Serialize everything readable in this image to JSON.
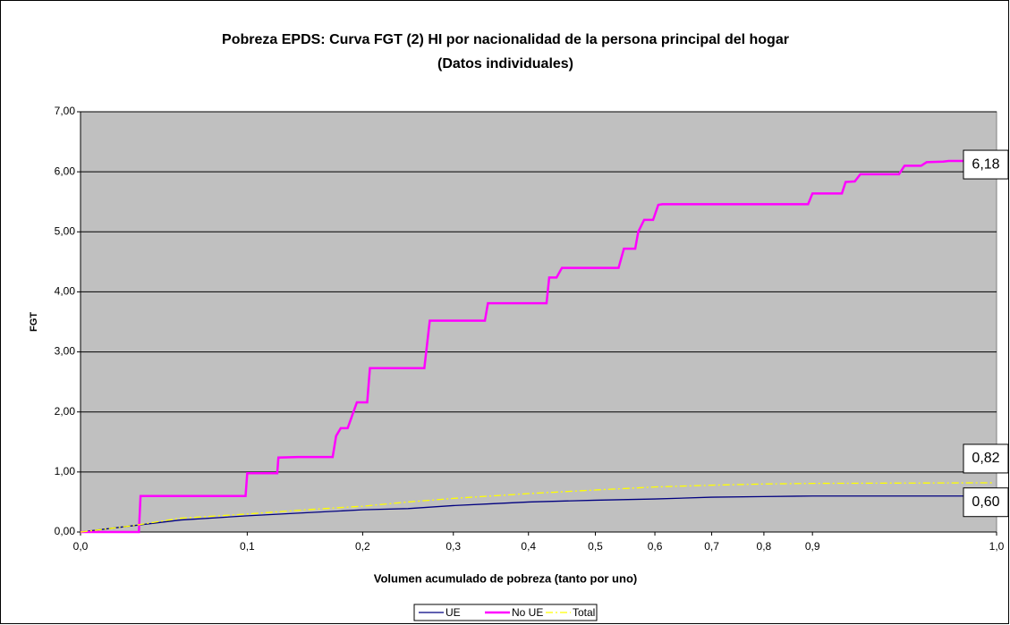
{
  "chart_data": {
    "type": "line",
    "title": "Pobreza EPDS: Curva FGT (2) HI por nacionalidad de la persona principal del hogar",
    "subtitle": "(Datos individuales)",
    "x_label": "Volumen acumulado de pobreza (tanto por uno)",
    "y_label": "FGT",
    "xlim": [
      0,
      1
    ],
    "ylim": [
      0,
      7
    ],
    "xticks": [
      {
        "value": 0,
        "label": "0,0"
      },
      {
        "value": 0.1,
        "label": "0,1"
      },
      {
        "value": 0.2,
        "label": "0,2"
      },
      {
        "value": 0.3,
        "label": "0,3"
      },
      {
        "value": 0.4,
        "label": "0,4"
      },
      {
        "value": 0.5,
        "label": "0,5"
      },
      {
        "value": 0.6,
        "label": "0,6"
      },
      {
        "value": 0.7,
        "label": "0,7"
      },
      {
        "value": 0.8,
        "label": "0,8"
      },
      {
        "value": 0.9,
        "label": "0,9"
      },
      {
        "value": 1,
        "label": "1,0"
      }
    ],
    "yticks": [
      {
        "value": 0,
        "label": "0,00"
      },
      {
        "value": 1,
        "label": "1,00"
      },
      {
        "value": 2,
        "label": "2,00"
      },
      {
        "value": 3,
        "label": "3,00"
      },
      {
        "value": 4,
        "label": "4,00"
      },
      {
        "value": 5,
        "label": "5,00"
      },
      {
        "value": 6,
        "label": "6,00"
      },
      {
        "value": 7,
        "label": "7,00"
      }
    ],
    "grid": true,
    "legend": "bottom",
    "series": [
      {
        "name": "UE",
        "color": "#000080",
        "dash": "solid",
        "x": [
          0,
          0.036,
          0.06,
          0.1,
          0.15,
          0.2,
          0.25,
          0.3,
          0.35,
          0.4,
          0.5,
          0.6,
          0.7,
          0.8,
          0.9,
          0.998
        ],
        "values": [
          0,
          0.12,
          0.2,
          0.27,
          0.32,
          0.37,
          0.39,
          0.44,
          0.47,
          0.5,
          0.53,
          0.55,
          0.58,
          0.59,
          0.6,
          0.6
        ],
        "last_label": "0,60"
      },
      {
        "name": "No UE",
        "color": "#ff00ff",
        "dash": "solid",
        "x": [
          0,
          0.035,
          0.036,
          0.099,
          0.1,
          0.126,
          0.127,
          0.144,
          0.174,
          0.177,
          0.181,
          0.187,
          0.195,
          0.205,
          0.208,
          0.268,
          0.274,
          0.342,
          0.346,
          0.427,
          0.431,
          0.442,
          0.45,
          0.539,
          0.548,
          0.567,
          0.572,
          0.582,
          0.597,
          0.606,
          0.613,
          0.891,
          0.9,
          0.916,
          0.918,
          0.923,
          0.926,
          0.947,
          0.95,
          0.959,
          0.962,
          0.971,
          0.974,
          0.998
        ],
        "values": [
          0,
          0,
          0.6,
          0.6,
          0.98,
          0.98,
          1.24,
          1.25,
          1.25,
          1.6,
          1.73,
          1.73,
          2.16,
          2.16,
          2.73,
          2.73,
          3.52,
          3.52,
          3.81,
          3.81,
          4.24,
          4.24,
          4.4,
          4.4,
          4.72,
          4.72,
          5.0,
          5.2,
          5.2,
          5.45,
          5.46,
          5.46,
          5.64,
          5.64,
          5.83,
          5.84,
          5.96,
          5.96,
          6.1,
          6.1,
          6.16,
          6.17,
          6.18,
          6.18
        ],
        "last_label": "6,18"
      },
      {
        "name": "Total",
        "color": "#ffff00",
        "dash": "dashdot",
        "x": [
          0,
          0.03,
          0.06,
          0.1,
          0.15,
          0.2,
          0.25,
          0.3,
          0.35,
          0.4,
          0.5,
          0.6,
          0.7,
          0.8,
          0.9,
          0.998
        ],
        "values": [
          0,
          0.1,
          0.23,
          0.3,
          0.37,
          0.43,
          0.5,
          0.56,
          0.6,
          0.64,
          0.7,
          0.75,
          0.78,
          0.8,
          0.81,
          0.82
        ],
        "last_label": "0,82"
      }
    ]
  }
}
